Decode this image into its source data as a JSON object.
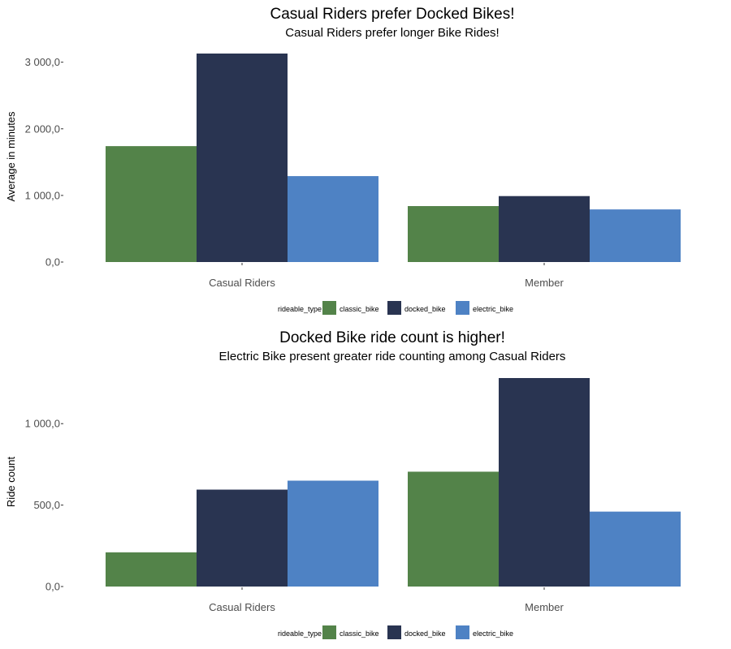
{
  "legend_title": "rideable_type",
  "chart_data": [
    {
      "type": "bar",
      "title": "Casual Riders prefer Docked Bikes!",
      "subtitle": "Casual Riders prefer longer Bike Rides!",
      "xlabel": "",
      "ylabel": "Average in minutes",
      "categories": [
        "Casual Riders",
        "Member"
      ],
      "series": [
        {
          "name": "classic_bike",
          "color": "#538349",
          "values": [
            1740,
            840
          ]
        },
        {
          "name": "docked_bike",
          "color": "#293451",
          "values": [
            3130,
            990
          ]
        },
        {
          "name": "electric_bike",
          "color": "#4e82c4",
          "values": [
            1290,
            790
          ]
        }
      ],
      "ylim": [
        0,
        3130
      ],
      "yticks": [
        0,
        1000,
        2000,
        3000
      ],
      "ytick_labels": [
        "0,0",
        "1 000,0",
        "2 000,0",
        "3 000,0"
      ],
      "grid": false,
      "legend_position": "bottom"
    },
    {
      "type": "bar",
      "title": "Docked Bike ride count is higher!",
      "subtitle": "Electric Bike present greater ride counting among Casual Riders",
      "xlabel": "",
      "ylabel": "Ride count",
      "categories": [
        "Casual Riders",
        "Member"
      ],
      "series": [
        {
          "name": "classic_bike",
          "color": "#538349",
          "values": [
            210,
            705
          ]
        },
        {
          "name": "docked_bike",
          "color": "#293451",
          "values": [
            595,
            1280
          ]
        },
        {
          "name": "electric_bike",
          "color": "#4e82c4",
          "values": [
            650,
            460
          ]
        }
      ],
      "ylim": [
        0,
        1280
      ],
      "yticks": [
        0,
        500,
        1000
      ],
      "ytick_labels": [
        "0,0",
        "500,0",
        "1 000,0"
      ],
      "grid": false,
      "legend_position": "bottom"
    }
  ]
}
